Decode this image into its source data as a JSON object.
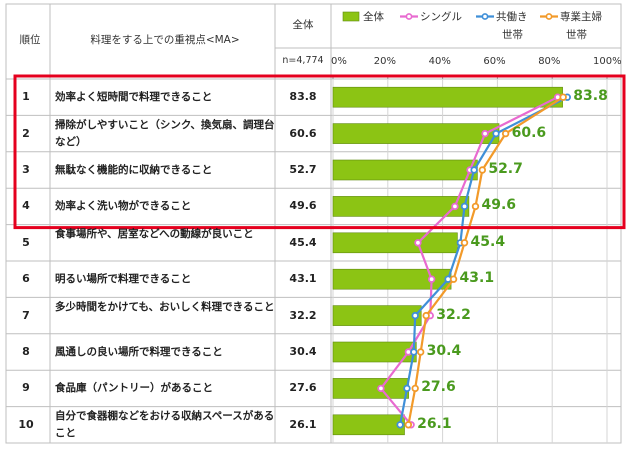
{
  "table": {
    "rank_header": "順位",
    "item_header": "料理をする上での重視点<MA>",
    "total_header": "全体",
    "n_label": "n=4,774"
  },
  "chart_data": {
    "type": "bar",
    "xlim": [
      0,
      100
    ],
    "ticks": [
      "0%",
      "20%",
      "40%",
      "60%",
      "80%",
      "100%"
    ],
    "ranks": [
      "1",
      "2",
      "3",
      "4",
      "5",
      "6",
      "7",
      "8",
      "9",
      "10"
    ],
    "categories": [
      "効率よく短時間で料理できること",
      "掃除がしやすいこと（シンク、換気扇、調理台など）",
      "無駄なく機能的に収納できること",
      "効率よく洗い物ができること",
      "食事場所や、居室などへの動線が良いこと",
      "明るい場所で料理できること",
      "多少時間をかけても、おいしく料理できること",
      "風通しの良い場所で料理できること",
      "食品庫（パントリー）があること",
      "自分で食器棚などをおける収納スペースがあること"
    ],
    "value_labels": [
      "83.8",
      "60.6",
      "52.7",
      "49.6",
      "45.4",
      "43.1",
      "32.2",
      "30.4",
      "27.6",
      "26.1"
    ],
    "series": [
      {
        "name": "全体",
        "kind": "bar",
        "color": "#8cc414",
        "values": [
          83.8,
          60.6,
          52.7,
          49.6,
          45.4,
          43.1,
          32.2,
          30.4,
          27.6,
          26.1
        ]
      },
      {
        "name": "シングル",
        "kind": "line",
        "color": "#e86ad0",
        "values": [
          82.0,
          55.5,
          50.0,
          44.5,
          31.0,
          36.0,
          35.5,
          27.5,
          17.5,
          28.5
        ]
      },
      {
        "name": "共働き世帯",
        "kind": "line",
        "color": "#3f8fd8",
        "values": [
          85.5,
          59.5,
          51.5,
          48.0,
          46.5,
          42.0,
          30.0,
          29.5,
          27.0,
          24.5
        ]
      },
      {
        "name": "専業主婦世帯",
        "kind": "line",
        "color": "#f29a2a",
        "values": [
          84.0,
          63.0,
          54.5,
          52.0,
          48.0,
          44.0,
          34.0,
          32.0,
          30.0,
          27.5
        ]
      }
    ],
    "legend_lines": [
      [
        "全体"
      ],
      [
        "シングル"
      ],
      [
        "共働き",
        "世帯"
      ],
      [
        "専業主婦",
        "世帯"
      ]
    ],
    "highlight": {
      "from_rank": "1",
      "to_rank": "4",
      "color": "#e5001e"
    }
  }
}
